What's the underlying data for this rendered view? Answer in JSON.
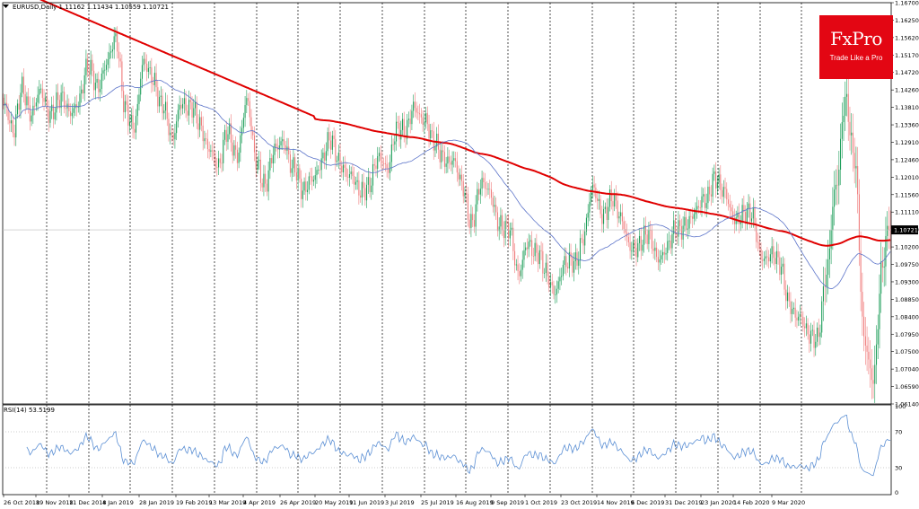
{
  "header": {
    "symbol_text": "EURUSD,Daily  1.11162 1.11434 1.10559 1.10721",
    "rsi_text": "RSI(14) 53.5199"
  },
  "logo": {
    "name": "FxPro",
    "tagline": "Trade Like a Pro"
  },
  "colors": {
    "bull": "#1e9e5a",
    "bear": "#f07d7d",
    "ma_slow": "#e00000",
    "ma_fast": "#5b73c9",
    "rsi": "#5b8fd4",
    "logo_bg": "#e30613"
  },
  "chart_data": {
    "type": "candlestick",
    "ylim": [
      1.0614,
      1.167
    ],
    "y_ticks": [
      "1.16700",
      "1.16250",
      "1.15620",
      "1.15170",
      "1.14720",
      "1.14260",
      "1.13810",
      "1.13360",
      "1.12910",
      "1.12460",
      "1.12010",
      "1.11560",
      "1.11110",
      "1.10660",
      "1.10200",
      "1.09750",
      "1.09300",
      "1.08850",
      "1.08400",
      "1.07950",
      "1.07500",
      "1.07040",
      "1.06590",
      "1.06140"
    ],
    "x_ticks": [
      "26 Oct 2018",
      "19 Nov 2018",
      "11 Dec 2018",
      "4 Jan 2019",
      "28 Jan 2019",
      "19 Feb 2019",
      "13 Mar 2019",
      "4 Apr 2019",
      "26 Apr 2019",
      "20 May 2019",
      "11 Jun 2019",
      "3 Jul 2019",
      "25 Jul 2019",
      "16 Aug 2019",
      "9 Sep 2019",
      "1 Oct 2019",
      "23 Oct 2019",
      "14 Nov 2019",
      "6 Dec 2019",
      "31 Dec 2019",
      "23 Jan 2020",
      "14 Feb 2020",
      "9 Mar 2020"
    ],
    "current_price": "1.10721",
    "price_anchors": [
      [
        0,
        1.14
      ],
      [
        6,
        1.132
      ],
      [
        12,
        1.146
      ],
      [
        18,
        1.137
      ],
      [
        24,
        1.143
      ],
      [
        30,
        1.139
      ],
      [
        36,
        1.141
      ],
      [
        42,
        1.138
      ],
      [
        48,
        1.142
      ],
      [
        54,
        1.149
      ],
      [
        60,
        1.145
      ],
      [
        66,
        1.152
      ],
      [
        72,
        1.156
      ],
      [
        78,
        1.14
      ],
      [
        84,
        1.135
      ],
      [
        90,
        1.15
      ],
      [
        96,
        1.148
      ],
      [
        102,
        1.14
      ],
      [
        108,
        1.13
      ],
      [
        114,
        1.142
      ],
      [
        120,
        1.139
      ],
      [
        126,
        1.134
      ],
      [
        132,
        1.13
      ],
      [
        138,
        1.123
      ],
      [
        144,
        1.133
      ],
      [
        150,
        1.128
      ],
      [
        156,
        1.14
      ],
      [
        162,
        1.126
      ],
      [
        168,
        1.12
      ],
      [
        174,
        1.127
      ],
      [
        180,
        1.131
      ],
      [
        186,
        1.124
      ],
      [
        192,
        1.116
      ],
      [
        198,
        1.122
      ],
      [
        204,
        1.125
      ],
      [
        210,
        1.13
      ],
      [
        216,
        1.126
      ],
      [
        222,
        1.121
      ],
      [
        228,
        1.117
      ],
      [
        234,
        1.12
      ],
      [
        240,
        1.125
      ],
      [
        246,
        1.123
      ],
      [
        252,
        1.135
      ],
      [
        258,
        1.132
      ],
      [
        264,
        1.14
      ],
      [
        270,
        1.137
      ],
      [
        276,
        1.129
      ],
      [
        282,
        1.127
      ],
      [
        288,
        1.126
      ],
      [
        294,
        1.118
      ],
      [
        300,
        1.11
      ],
      [
        306,
        1.119
      ],
      [
        312,
        1.116
      ],
      [
        318,
        1.11
      ],
      [
        324,
        1.107
      ],
      [
        330,
        1.095
      ],
      [
        336,
        1.105
      ],
      [
        342,
        1.1
      ],
      [
        348,
        1.096
      ],
      [
        354,
        1.092
      ],
      [
        360,
        1.097
      ],
      [
        366,
        1.099
      ],
      [
        372,
        1.106
      ],
      [
        378,
        1.117
      ],
      [
        384,
        1.112
      ],
      [
        390,
        1.116
      ],
      [
        396,
        1.109
      ],
      [
        402,
        1.104
      ],
      [
        408,
        1.103
      ],
      [
        414,
        1.105
      ],
      [
        420,
        1.101
      ],
      [
        426,
        1.102
      ],
      [
        432,
        1.107
      ],
      [
        438,
        1.11
      ],
      [
        444,
        1.111
      ],
      [
        450,
        1.115
      ],
      [
        456,
        1.122
      ],
      [
        462,
        1.116
      ],
      [
        468,
        1.111
      ],
      [
        474,
        1.112
      ],
      [
        480,
        1.11
      ],
      [
        486,
        1.101
      ],
      [
        492,
        1.101
      ],
      [
        498,
        1.097
      ],
      [
        504,
        1.089
      ],
      [
        510,
        1.084
      ],
      [
        516,
        1.079
      ],
      [
        522,
        1.08
      ],
      [
        528,
        1.095
      ],
      [
        534,
        1.118
      ],
      [
        540,
        1.143
      ],
      [
        546,
        1.125
      ],
      [
        552,
        1.079
      ],
      [
        558,
        1.069
      ],
      [
        564,
        1.097
      ],
      [
        569,
        1.111
      ]
    ]
  }
}
